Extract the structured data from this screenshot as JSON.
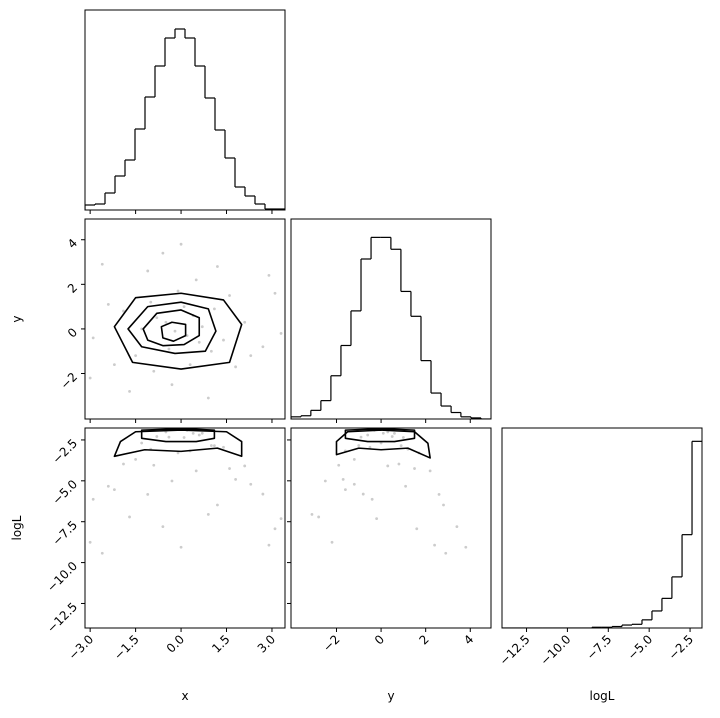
{
  "chart_data": {
    "type": "corner",
    "params": [
      {
        "label": "x",
        "lim": [
          -3.17,
          3.43
        ],
        "ticks": [
          {
            "value": -3.0,
            "label": "−3.0"
          },
          {
            "value": -1.5,
            "label": "−1.5"
          },
          {
            "value": 0.0,
            "label": "0.0"
          },
          {
            "value": 1.5,
            "label": "1.5"
          },
          {
            "value": 3.0,
            "label": "3.0"
          }
        ]
      },
      {
        "label": "y",
        "lim": [
          -4.04,
          4.93
        ],
        "ticks": [
          {
            "value": -2,
            "label": "−2"
          },
          0,
          2,
          4
        ]
      },
      {
        "label": "logL",
        "lim": [
          -14.0,
          -1.77
        ],
        "ticks": [
          {
            "value": -12.5,
            "label": "−12.5"
          },
          {
            "value": -10.0,
            "label": "−10.0"
          },
          {
            "value": -7.5,
            "label": "−7.5"
          },
          {
            "value": -5.0,
            "label": "−5.0"
          },
          {
            "value": -2.5,
            "label": "−2.5"
          }
        ]
      }
    ],
    "hist": [
      {
        "bins": [
          -3.17,
          -2.84,
          -2.51,
          -2.18,
          -1.85,
          -1.52,
          -1.19,
          -0.86,
          -0.53,
          -0.2,
          0.13,
          0.46,
          0.79,
          1.12,
          1.45,
          1.78,
          2.11,
          2.44,
          2.77,
          3.1,
          3.43
        ],
        "counts": [
          5,
          6,
          17,
          34,
          50,
          81,
          113,
          144,
          172,
          181,
          172,
          144,
          112,
          80,
          52,
          23,
          14,
          6,
          1,
          1
        ],
        "ylim": [
          0,
          200
        ]
      },
      {
        "bins": [
          -4.04,
          -3.59,
          -3.15,
          -2.7,
          -2.25,
          -1.8,
          -1.35,
          -0.9,
          -0.45,
          -0.01,
          0.44,
          0.89,
          1.34,
          1.79,
          2.24,
          2.69,
          3.14,
          3.58,
          4.03,
          4.48,
          4.93
        ],
        "counts": [
          2,
          3,
          8,
          17,
          40,
          68,
          100,
          148,
          168,
          168,
          157,
          118,
          95,
          54,
          24,
          12,
          6,
          2,
          1,
          0
        ],
        "ylim": [
          0,
          185
        ]
      },
      {
        "bins": [
          -14.0,
          -13.39,
          -12.78,
          -12.17,
          -11.55,
          -10.94,
          -10.33,
          -9.72,
          -9.11,
          -8.5,
          -7.89,
          -7.27,
          -6.66,
          -6.05,
          -5.44,
          -4.83,
          -4.22,
          -3.61,
          -2.99,
          -2.38,
          -1.77
        ],
        "counts": [
          0,
          0,
          0,
          0,
          0,
          0,
          0,
          0,
          0,
          1,
          1,
          2,
          4,
          5,
          11,
          23,
          40,
          69,
          126,
          252
        ],
        "ylim": [
          0,
          270
        ]
      }
    ],
    "samples": [
      [
        0.2,
        -0.8,
        1.1,
        -1.5,
        2.1,
        -2.4,
        0.5,
        -0.3,
        1.8,
        -1.1,
        2.7,
        -2.9,
        0.9,
        -0.6,
        3.1,
        -3.0,
        0.1,
        -0.4,
        0.7,
        -1.3,
        1.4,
        -0.1,
        0.3,
        -1.9,
        1.6,
        -0.9,
        2.3,
        -2.2,
        1.2,
        -1.7,
        2.9,
        -2.6,
        0.0,
        3.3,
        -0.5,
        0.4,
        -0.2,
        1.0,
        -1.0,
        0.6
      ],
      [
        -0.3,
        0.5,
        0.9,
        -1.2,
        0.3,
        1.1,
        2.2,
        -2.5,
        -1.7,
        2.6,
        -0.8,
        -0.4,
        -3.1,
        3.4,
        1.6,
        -2.2,
        1.0,
        -0.9,
        0.1,
        0.0,
        -0.5,
        1.7,
        -1.6,
        0.8,
        1.5,
        -1.9,
        -1.2,
        -1.6,
        2.8,
        -2.8,
        2.4,
        2.9,
        3.8,
        -0.2,
        0.3,
        0.6,
        -0.1,
        -1.0,
        1.2,
        -0.6
      ],
      [
        -1.91,
        -2.29,
        -2.85,
        -3.69,
        -4.09,
        -5.33,
        -4.39,
        -5.01,
        -4.91,
        -5.83,
        -5.81,
        -6.13,
        -7.05,
        -7.8,
        -7.93,
        -8.76,
        -2.35,
        -2.33,
        -2.09,
        -2.69,
        -2.95,
        -3.29,
        -3.17,
        -3.97,
        -4.25,
        -4.05,
        -5.21,
        -5.54,
        -6.48,
        -7.21,
        -8.93,
        -9.43,
        -9.06,
        -7.31,
        -2.01,
        -2.1,
        -1.87,
        -2.84,
        -3.06,
        -2.2
      ]
    ],
    "contours": [
      [
        {
          "x": [
            -2.2,
            -1.5,
            0.0,
            1.4,
            2.0,
            1.6,
            0.0,
            -1.6
          ],
          "y": [
            0.1,
            1.4,
            1.6,
            1.3,
            0.2,
            -1.5,
            -1.8,
            -1.5
          ]
        },
        {
          "x": [
            -1.75,
            -1.1,
            0.0,
            0.9,
            1.15,
            0.8,
            -0.2,
            -1.3
          ],
          "y": [
            0.0,
            1.0,
            1.2,
            0.9,
            -0.1,
            -1.0,
            -1.1,
            -0.8
          ]
        },
        {
          "x": [
            -1.25,
            -0.8,
            0.0,
            0.6,
            0.6,
            0.1,
            -0.6,
            -1.1
          ],
          "y": [
            0.0,
            0.7,
            0.85,
            0.5,
            -0.3,
            -0.7,
            -0.75,
            -0.5
          ]
        },
        {
          "x": [
            -0.65,
            -0.3,
            0.15,
            0.15,
            -0.25,
            -0.6
          ],
          "y": [
            0.1,
            0.3,
            0.2,
            -0.3,
            -0.55,
            -0.4
          ]
        }
      ],
      [
        {
          "x": [
            -2.2,
            -1.2,
            0.0,
            1.2,
            2.0,
            2.0,
            1.5,
            0.0,
            -1.5,
            -2.0
          ],
          "y": [
            -3.5,
            -3.1,
            -3.2,
            -3.0,
            -3.5,
            -2.6,
            -2.0,
            -1.9,
            -2.0,
            -2.6
          ]
        },
        {
          "x": [
            -1.3,
            -0.5,
            0.5,
            1.1,
            1.1,
            0.5,
            -0.5,
            -1.3
          ],
          "y": [
            -2.4,
            -2.6,
            -2.6,
            -2.4,
            -1.9,
            -1.85,
            -1.85,
            -1.9
          ]
        }
      ],
      [
        {
          "x": [
            -2.0,
            -1.0,
            0.0,
            1.2,
            2.2,
            2.1,
            1.5,
            0.0,
            -1.5,
            -2.0
          ],
          "y": [
            -3.4,
            -3.0,
            -3.1,
            -3.0,
            -3.6,
            -2.7,
            -2.0,
            -1.9,
            -2.0,
            -2.6
          ]
        },
        {
          "x": [
            -1.6,
            -0.6,
            0.6,
            1.5,
            1.5,
            0.6,
            -0.6,
            -1.6
          ],
          "y": [
            -2.4,
            -2.6,
            -2.6,
            -2.4,
            -1.9,
            -1.85,
            -1.85,
            -1.9
          ]
        }
      ]
    ]
  }
}
